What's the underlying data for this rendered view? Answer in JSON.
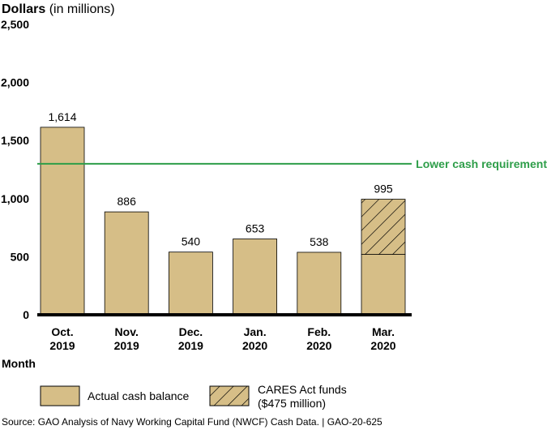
{
  "chart_data": {
    "type": "bar",
    "ylabel_bold": "Dollars",
    "ylabel_rest": " (in millions)",
    "xlabel": "Month",
    "categories": [
      [
        "Oct.",
        "2019"
      ],
      [
        "Nov.",
        "2019"
      ],
      [
        "Dec.",
        "2019"
      ],
      [
        "Jan.",
        "2020"
      ],
      [
        "Feb.",
        "2020"
      ],
      [
        "Mar.",
        "2020"
      ]
    ],
    "yticks": [
      0,
      500,
      1000,
      1500,
      2000,
      2500
    ],
    "ytick_labels": [
      "0",
      "500",
      "1,000",
      "1,500",
      "2,000",
      "2,500"
    ],
    "ylim": [
      0,
      2500
    ],
    "series": [
      {
        "name": "Actual cash balance",
        "values": [
          1614,
          886,
          540,
          653,
          538,
          520
        ]
      },
      {
        "name": "CARES Act funds",
        "values": [
          0,
          0,
          0,
          0,
          0,
          475
        ]
      }
    ],
    "totals": [
      1614,
      886,
      540,
      653,
      538,
      995
    ],
    "data_labels": [
      "1,614",
      "886",
      "540",
      "653",
      "538",
      "995"
    ],
    "reference_line": {
      "label": "Lower cash requirement",
      "value": 1300,
      "color": "#2e9e49"
    },
    "legend": {
      "actual_label": "Actual cash balance",
      "cares_label_line1": "CARES Act funds",
      "cares_label_line2": "($475 million)"
    },
    "colors": {
      "bar": "#d6be87",
      "axis": "#000000",
      "reference": "#2e9e49"
    }
  },
  "source": "Source: GAO Analysis of Navy Working Capital Fund (NWCF) Cash Data.  |  GAO-20-625"
}
